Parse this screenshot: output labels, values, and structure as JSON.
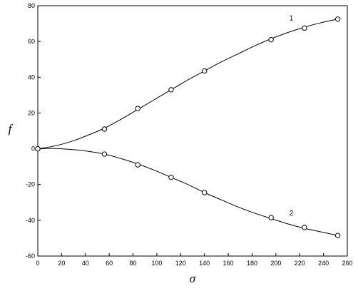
{
  "chart_data": {
    "type": "scatter",
    "title": "",
    "xlabel": "σ",
    "ylabel": "f",
    "xlim": [
      0,
      260
    ],
    "ylim": [
      -60,
      80
    ],
    "x_ticks": [
      0,
      20,
      40,
      60,
      80,
      100,
      120,
      140,
      160,
      180,
      200,
      220,
      240,
      260
    ],
    "y_ticks": [
      -60,
      -40,
      -20,
      0,
      20,
      40,
      60,
      80
    ],
    "grid": false,
    "legend": "none",
    "series": [
      {
        "name": "1",
        "markers": [
          {
            "x": 0,
            "y": 0
          },
          {
            "x": 56,
            "y": 11
          },
          {
            "x": 84,
            "y": 22.5
          },
          {
            "x": 112,
            "y": 33
          },
          {
            "x": 140,
            "y": 43.5
          },
          {
            "x": 196,
            "y": 61
          },
          {
            "x": 224,
            "y": 67.5
          },
          {
            "x": 252,
            "y": 72.5
          }
        ],
        "curve": [
          {
            "x": 0,
            "y": 0
          },
          {
            "x": 10,
            "y": 1
          },
          {
            "x": 20,
            "y": 2.5
          },
          {
            "x": 30,
            "y": 4.5
          },
          {
            "x": 40,
            "y": 7
          },
          {
            "x": 56,
            "y": 11.5
          },
          {
            "x": 70,
            "y": 16.5
          },
          {
            "x": 84,
            "y": 22
          },
          {
            "x": 98,
            "y": 27.5
          },
          {
            "x": 112,
            "y": 33
          },
          {
            "x": 126,
            "y": 38.5
          },
          {
            "x": 140,
            "y": 43.5
          },
          {
            "x": 154,
            "y": 48.5
          },
          {
            "x": 168,
            "y": 53
          },
          {
            "x": 182,
            "y": 57.5
          },
          {
            "x": 196,
            "y": 61.5
          },
          {
            "x": 210,
            "y": 65
          },
          {
            "x": 224,
            "y": 68
          },
          {
            "x": 238,
            "y": 70.5
          },
          {
            "x": 252,
            "y": 72.5
          }
        ]
      },
      {
        "name": "2",
        "markers": [
          {
            "x": 0,
            "y": 0
          },
          {
            "x": 56,
            "y": -3
          },
          {
            "x": 84,
            "y": -9
          },
          {
            "x": 112,
            "y": -16
          },
          {
            "x": 140,
            "y": -24.5
          },
          {
            "x": 196,
            "y": -38.5
          },
          {
            "x": 224,
            "y": -44
          },
          {
            "x": 252,
            "y": -48.5
          }
        ],
        "curve": [
          {
            "x": 0,
            "y": 0
          },
          {
            "x": 10,
            "y": 0.2
          },
          {
            "x": 20,
            "y": 0
          },
          {
            "x": 30,
            "y": -0.5
          },
          {
            "x": 40,
            "y": -1.2
          },
          {
            "x": 56,
            "y": -3
          },
          {
            "x": 70,
            "y": -5.5
          },
          {
            "x": 84,
            "y": -8.5
          },
          {
            "x": 98,
            "y": -12
          },
          {
            "x": 112,
            "y": -16
          },
          {
            "x": 126,
            "y": -20
          },
          {
            "x": 140,
            "y": -24.5
          },
          {
            "x": 154,
            "y": -28.5
          },
          {
            "x": 168,
            "y": -32.5
          },
          {
            "x": 182,
            "y": -36
          },
          {
            "x": 196,
            "y": -39
          },
          {
            "x": 210,
            "y": -42
          },
          {
            "x": 224,
            "y": -44.5
          },
          {
            "x": 238,
            "y": -46.5
          },
          {
            "x": 252,
            "y": -48.5
          }
        ]
      }
    ],
    "annotations": [
      {
        "text": "1",
        "x": 213,
        "y": 73
      },
      {
        "text": "2",
        "x": 213,
        "y": -36
      }
    ]
  }
}
